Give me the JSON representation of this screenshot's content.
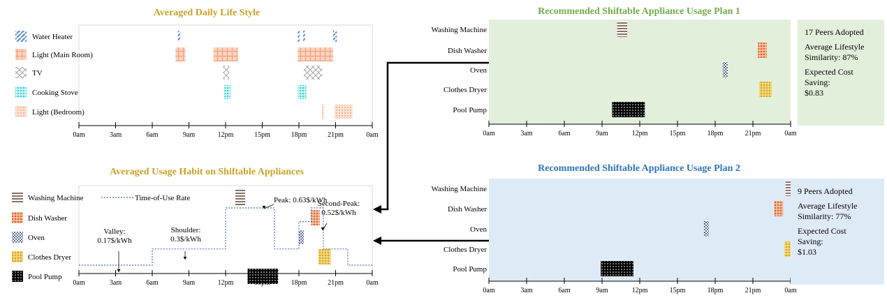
{
  "colors": {
    "title_gold": "#c9a227",
    "title_green": "#70ad47",
    "title_blue": "#2e75b6",
    "plan1_bg": "#e2efda",
    "plan2_bg": "#deebf7",
    "tou_line": "#4472c4",
    "water_heater": "#5b8bd6",
    "light_main": "#f4a07a",
    "tv": "#a6a6a6",
    "cooking_stove": "#26d3d8",
    "light_bedroom": "#e6905e",
    "washing_machine": "#8b6f63",
    "dish_washer": "#e0652b",
    "oven": "#5f7296",
    "clothes_dryer": "#d4a71c",
    "pool_pump": "#1a1a1a"
  },
  "chart_data": [
    {
      "type": "timeline",
      "id": "lifestyle",
      "title": "Averaged Daily Life Style",
      "x_ticks": [
        "0am",
        "3am",
        "6am",
        "9am",
        "12pm",
        "15pm",
        "18pm",
        "21pm",
        "0am"
      ],
      "xlim": [
        0,
        24
      ],
      "rows": [
        {
          "name": "Water Heater",
          "icon": "water_heater",
          "intervals": [
            [
              8.1,
              8.3
            ],
            [
              17.9,
              18.05
            ],
            [
              18.35,
              18.5
            ],
            [
              20.8,
              21.1
            ]
          ]
        },
        {
          "name": "Light (Main Room)",
          "icon": "light_main",
          "intervals": [
            [
              7.9,
              8.7
            ],
            [
              11,
              13
            ],
            [
              17.9,
              20.8
            ]
          ]
        },
        {
          "name": "TV",
          "icon": "tv",
          "intervals": [
            [
              11.8,
              12.3
            ],
            [
              18.4,
              19.9
            ]
          ]
        },
        {
          "name": "Cooking Stove",
          "icon": "cooking_stove",
          "intervals": [
            [
              11.9,
              12.4
            ],
            [
              17.9,
              18.6
            ]
          ]
        },
        {
          "name": "Light (Bedroom)",
          "icon": "light_bedroom",
          "intervals": [
            [
              19.9,
              20
            ],
            [
              20.9,
              22.4
            ]
          ]
        }
      ]
    },
    {
      "type": "timeline",
      "id": "habit",
      "title": "Averaged Usage Habit on Shiftable Appliances",
      "x_ticks": [
        "0am",
        "3am",
        "6am",
        "9am",
        "12pm",
        "15pm",
        "18pm",
        "21pm",
        "0am"
      ],
      "xlim": [
        0,
        24
      ],
      "legend": "Time-of-Use Rate",
      "tou_rate": {
        "unit": "$/kWh",
        "steps": [
          [
            0,
            6,
            0.17
          ],
          [
            6,
            12,
            0.3
          ],
          [
            12,
            16,
            0.63
          ],
          [
            16,
            18,
            0.3
          ],
          [
            18,
            19,
            0.52
          ],
          [
            19,
            20,
            0.63
          ],
          [
            20,
            21,
            0.3
          ],
          [
            21,
            22,
            0.3
          ],
          [
            22,
            24,
            0.17
          ]
        ]
      },
      "annotations": [
        {
          "text": [
            "Valley:",
            "0.17$/kWh"
          ]
        },
        {
          "text": [
            "Shoulder:",
            "0.3$/kWh"
          ]
        },
        {
          "text": [
            "Peak: 0.63$/kWh"
          ]
        },
        {
          "text": [
            "Second-Peak:",
            "0.52$/kWh"
          ]
        }
      ],
      "rows": [
        {
          "name": "Washing Machine",
          "icon": "washing_machine",
          "intervals": [
            [
              12.8,
              13.6
            ]
          ]
        },
        {
          "name": "Dish Washer",
          "icon": "dish_washer",
          "intervals": [
            [
              19,
              19.7
            ]
          ]
        },
        {
          "name": "Oven",
          "icon": "oven",
          "intervals": [
            [
              18,
              18.4
            ]
          ]
        },
        {
          "name": "Clothes Dryer",
          "icon": "clothes_dryer",
          "intervals": [
            [
              19.6,
              20.6
            ]
          ]
        },
        {
          "name": "Pool Pump",
          "icon": "pool_pump",
          "intervals": [
            [
              13.8,
              16.3
            ]
          ]
        }
      ]
    },
    {
      "type": "timeline",
      "id": "plan1",
      "title": "Recommended Shiftable Appliance Usage Plan 1",
      "x_ticks": [
        "0am",
        "3am",
        "6am",
        "9am",
        "12pm",
        "15pm",
        "18pm",
        "21pm",
        "0am"
      ],
      "xlim": [
        0,
        24
      ],
      "rows": [
        {
          "name": "Washing Machine",
          "icon": "washing_machine",
          "intervals": [
            [
              10.2,
              11
            ]
          ]
        },
        {
          "name": "Dish Washer",
          "icon": "dish_washer",
          "intervals": [
            [
              21.4,
              22.1
            ]
          ]
        },
        {
          "name": "Oven",
          "icon": "oven",
          "intervals": [
            [
              18.6,
              19
            ]
          ]
        },
        {
          "name": "Clothes Dryer",
          "icon": "clothes_dryer",
          "intervals": [
            [
              21.5,
              22.5
            ]
          ]
        },
        {
          "name": "Pool Pump",
          "icon": "pool_pump",
          "intervals": [
            [
              9.8,
              12.4
            ]
          ]
        }
      ],
      "info": [
        "17 Peers Adopted",
        "",
        "Average Lifestyle",
        "Similarity: 87%",
        "",
        "Expected Cost",
        "Saving:",
        "$0.83"
      ]
    },
    {
      "type": "timeline",
      "id": "plan2",
      "title": "Recommended Shiftable Appliance Usage Plan 2",
      "x_ticks": [
        "0am",
        "3am",
        "6am",
        "9am",
        "12pm",
        "15pm",
        "18pm",
        "21pm",
        "0am"
      ],
      "xlim": [
        0,
        24
      ],
      "rows": [
        {
          "name": "Washing Machine",
          "icon": "washing_machine",
          "intervals": [
            [
              23.6,
              24.4
            ]
          ]
        },
        {
          "name": "Dish Washer",
          "icon": "dish_washer",
          "intervals": [
            [
              22.7,
              23.4
            ]
          ]
        },
        {
          "name": "Oven",
          "icon": "oven",
          "intervals": [
            [
              17.1,
              17.5
            ]
          ]
        },
        {
          "name": "Clothes Dryer",
          "icon": "clothes_dryer",
          "intervals": [
            [
              23.5,
              24.5
            ]
          ]
        },
        {
          "name": "Pool Pump",
          "icon": "pool_pump",
          "intervals": [
            [
              8.9,
              11.5
            ]
          ]
        }
      ],
      "info": [
        "9 Peers Adopted",
        "",
        "Average Lifestyle",
        "Similarity: 77%",
        "",
        "Expected Cost",
        "Saving:",
        "$1.03"
      ]
    }
  ]
}
